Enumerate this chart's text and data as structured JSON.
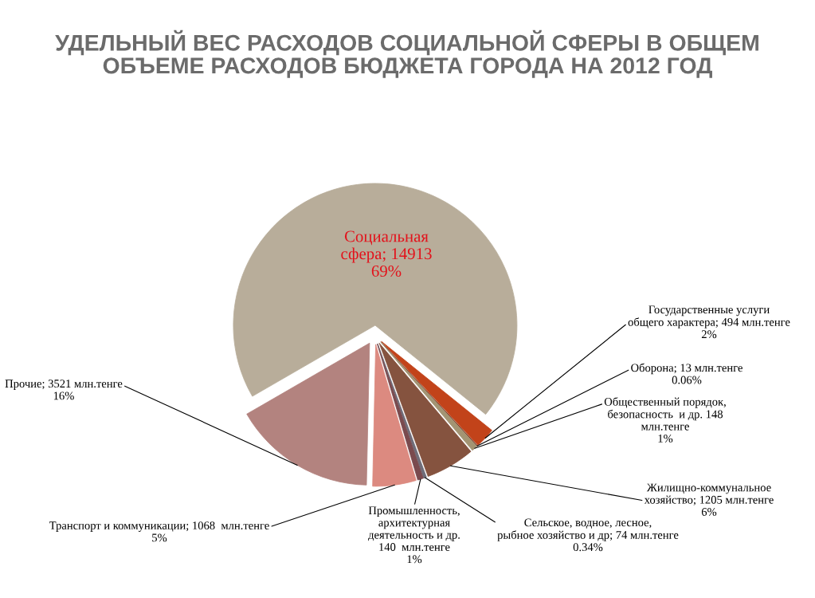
{
  "chart_data": {
    "type": "pie",
    "title": "УДЕЛЬНЫЙ ВЕС РАСХОДОВ СОЦИАЛЬНОЙ СФЕРЫ В ОБЩЕМ\nОБЪЕМЕ РАСХОДОВ БЮДЖЕТА ГОРОДА НА 2012 ГОД",
    "categories": [
      "Социальная\nсфера",
      "Государственные услуги\nобщего характера",
      "Оборона",
      "Общественный порядок,\nбезопасность  и др.",
      "Жилищно-коммунальное\nхозяйство",
      "Сельское, водное, лесное,\nрыбное хозяйство и др",
      "Промышленность,\nархитектурная\nдеятельность и др.",
      "Транспорт и коммуникации",
      "Прочие"
    ],
    "values": [
      14913,
      494,
      13,
      148,
      1205,
      74,
      140,
      1068,
      3521
    ],
    "value_labels": [
      "14913\n69%",
      "494 млн.тенге\n2%",
      "13 млн.тенге\n0.06%",
      "148\nмлн.тенге\n1%",
      "1205 млн.тенге\n6%",
      "74 млн.тенге\n0.34%",
      "140  млн.тенге\n1%",
      "1068  млн.тенге\n5%",
      "3521 млн.тенге\n16%"
    ],
    "colors": [
      "#b8ad9a",
      "#c2431a",
      "#6e2412",
      "#a39473",
      "#85533f",
      "#6f6c78",
      "#7a4a4e",
      "#dc8a80",
      "#b3837f"
    ]
  }
}
